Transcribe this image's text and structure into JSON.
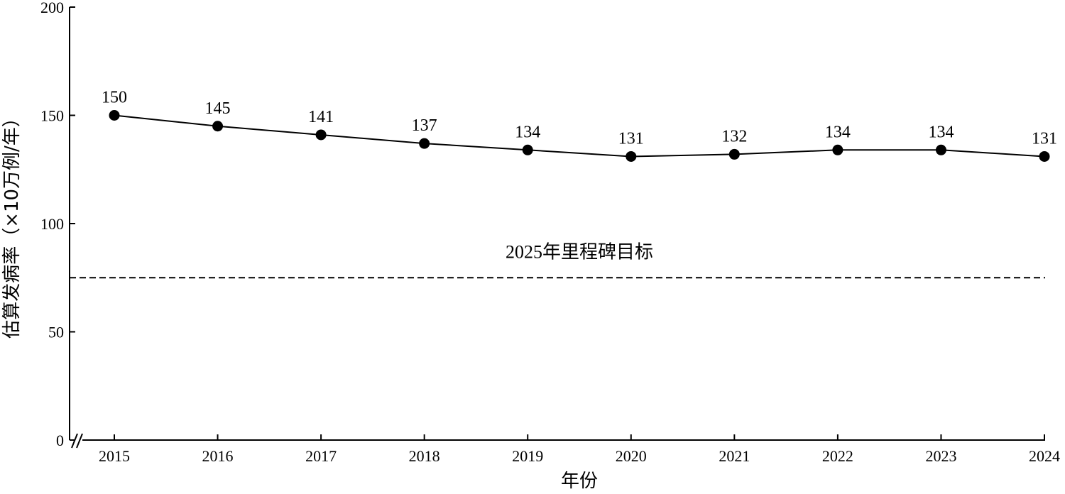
{
  "chart_data": {
    "type": "line",
    "title": "",
    "xlabel": "年份",
    "ylabel": "估算发病率（×10万例/年）",
    "x": [
      "2015",
      "2016",
      "2017",
      "2018",
      "2019",
      "2020",
      "2021",
      "2022",
      "2023",
      "2024"
    ],
    "series": [
      {
        "values": [
          150,
          145,
          141,
          137,
          134,
          131,
          132,
          134,
          134,
          131
        ]
      }
    ],
    "data_labels": [
      "150",
      "145",
      "141",
      "137",
      "134",
      "131",
      "132",
      "134",
      "134",
      "131"
    ],
    "ylim": [
      0,
      200
    ],
    "yticks": [
      "0",
      "50",
      "100",
      "150",
      "200"
    ],
    "reference_line": {
      "value": 75,
      "label": "2025年里程碑目标",
      "style": "dashed"
    },
    "axis_break": true,
    "grid": false,
    "colors": {
      "line": "#000000",
      "marker": "#000000",
      "axis": "#000000"
    }
  }
}
